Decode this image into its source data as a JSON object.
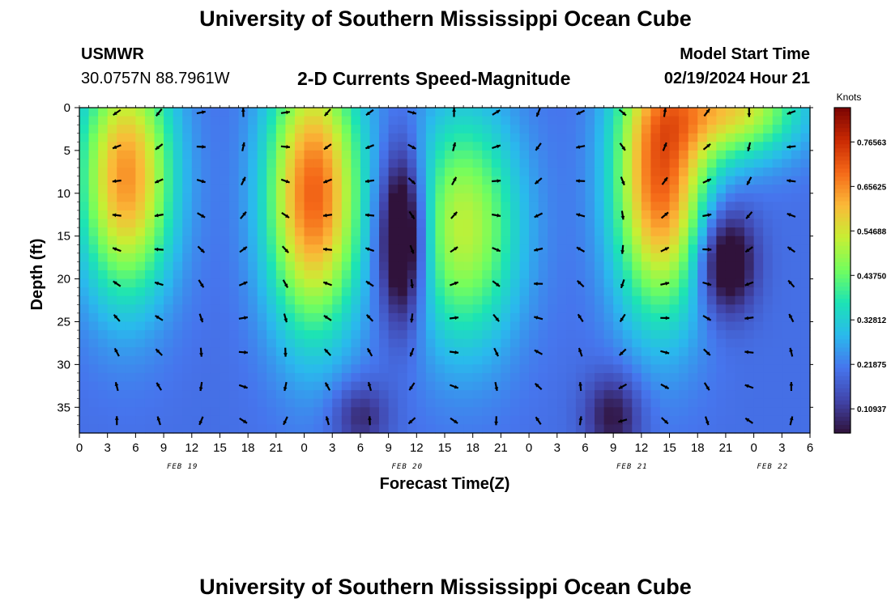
{
  "header": {
    "title": "University of Southern Mississippi Ocean Cube",
    "station": "USMWR",
    "coords": "30.0757N  88.7961W",
    "plot_title": "2-D Currents Speed-Magnitude",
    "model_label": "Model Start Time",
    "model_time": "02/19/2024 Hour 21"
  },
  "footer": {
    "title": "University of Southern Mississippi Ocean Cube"
  },
  "chart_data": {
    "type": "heatmap",
    "title": "2-D Currents Speed-Magnitude",
    "xlabel": "Forecast Time(Z)",
    "ylabel": "Depth (ft)",
    "xlim": [
      0,
      78
    ],
    "ylim": [
      38,
      0
    ],
    "x_tick_labels": [
      "0",
      "3",
      "6",
      "9",
      "12",
      "15",
      "18",
      "21",
      "0",
      "3",
      "6",
      "9",
      "12",
      "15",
      "18",
      "21",
      "0",
      "3",
      "6",
      "9",
      "12",
      "15",
      "18",
      "21",
      "0",
      "3",
      "6"
    ],
    "x_tick_hours": [
      0,
      3,
      6,
      9,
      12,
      15,
      18,
      21,
      24,
      27,
      30,
      33,
      36,
      39,
      42,
      45,
      48,
      51,
      54,
      57,
      60,
      63,
      66,
      69,
      72,
      75,
      78
    ],
    "date_labels": [
      {
        "label": "FEB 19",
        "hour": 11
      },
      {
        "label": "FEB 20",
        "hour": 35
      },
      {
        "label": "FEB 21",
        "hour": 59
      },
      {
        "label": "FEB 22",
        "hour": 74
      }
    ],
    "y_ticks": [
      0,
      5,
      10,
      15,
      20,
      25,
      30,
      35
    ],
    "colorbar": {
      "label": "Knots",
      "ticks": [
        "0.76563",
        "0.65625",
        "0.54688",
        "0.43750",
        "0.32812",
        "0.21875",
        "0.10937"
      ],
      "values": [
        0.76563,
        0.65625,
        0.54688,
        0.4375,
        0.32812,
        0.21875,
        0.10937
      ],
      "range": [
        0.05,
        0.85
      ]
    },
    "arrow_hours": [
      4,
      8.5,
      13,
      17.5,
      22,
      26.5,
      31,
      35.5,
      40,
      44.5,
      49,
      53.5,
      58,
      62.5,
      67,
      71.5,
      76
    ],
    "arrow_depths": [
      0,
      4,
      8,
      12,
      16,
      20,
      24,
      28,
      32,
      36
    ],
    "speed_features": [
      {
        "hour": 5,
        "depth": 8,
        "speed": 0.45,
        "hour_spread": 5,
        "depth_spread": 14
      },
      {
        "hour": 25,
        "depth": 10,
        "speed": 0.5,
        "hour_spread": 5,
        "depth_spread": 16
      },
      {
        "hour": 41,
        "depth": 14,
        "speed": 0.32,
        "hour_spread": 6,
        "depth_spread": 14
      },
      {
        "hour": 62,
        "depth": 8,
        "speed": 0.5,
        "hour_spread": 5,
        "depth_spread": 16
      },
      {
        "hour": 70,
        "depth": 0,
        "speed": 0.35,
        "hour_spread": 7,
        "depth_spread": 6
      },
      {
        "hour": 34.5,
        "depth": 15,
        "speed": -0.35,
        "hour_spread": 2.5,
        "depth_spread": 10
      },
      {
        "hour": 69,
        "depth": 18,
        "speed": -0.25,
        "hour_spread": 3,
        "depth_spread": 6
      },
      {
        "hour": 57,
        "depth": 36,
        "speed": -0.15,
        "hour_spread": 3,
        "depth_spread": 5
      },
      {
        "hour": 30,
        "depth": 36,
        "speed": -0.12,
        "hour_spread": 3,
        "depth_spread": 4
      }
    ]
  }
}
